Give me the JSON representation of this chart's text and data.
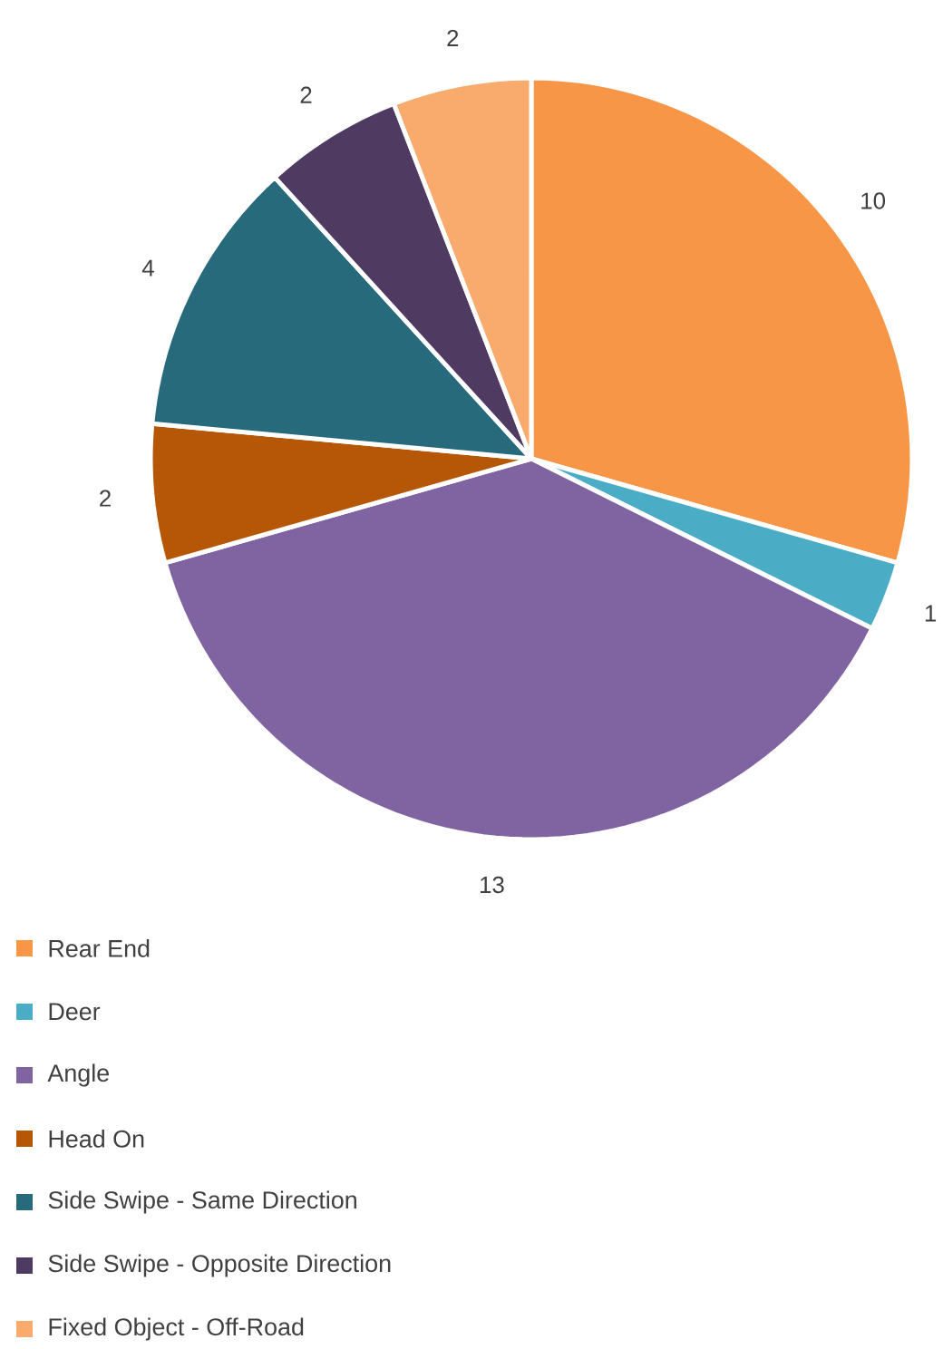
{
  "chart_data": {
    "type": "pie",
    "categories": [
      "Rear End",
      "Deer",
      "Angle",
      "Head On",
      "Side Swipe - Same Direction",
      "Side Swipe - Opposite Direction",
      "Fixed Object - Off-Road"
    ],
    "values": [
      10,
      1,
      13,
      2,
      4,
      2,
      2
    ],
    "colors": [
      "#f79646",
      "#4bacc6",
      "#8064a2",
      "#b65708",
      "#276a7c",
      "#4f3b62",
      "#f9ab6e"
    ],
    "data_labels": true,
    "legend": "bottom"
  }
}
